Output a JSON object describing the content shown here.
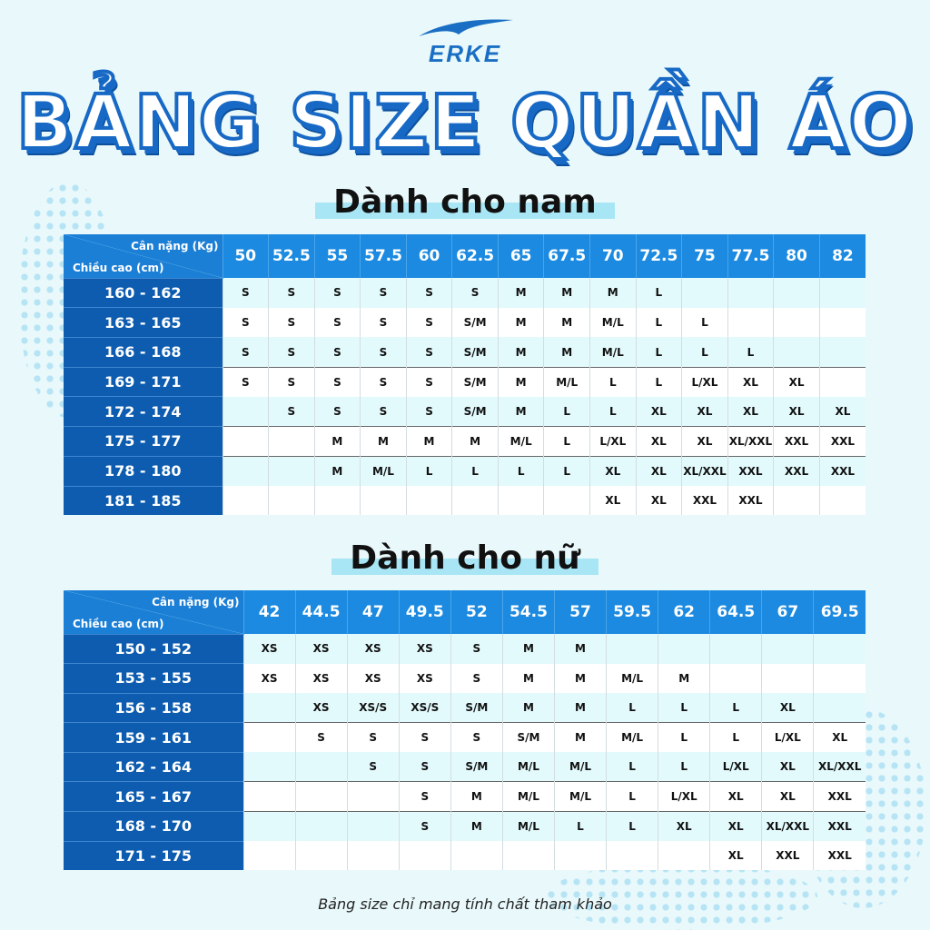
{
  "brand": {
    "name": "ERKE",
    "color": "#1a6fc4"
  },
  "title": "BẢNG SIZE QUẦN ÁO",
  "male": {
    "heading": "Dành cho nam",
    "weight_label": "Cân nặng (Kg)",
    "height_label": "Chiều cao (cm)",
    "weights": [
      "50",
      "52.5",
      "55",
      "57.5",
      "60",
      "62.5",
      "65",
      "67.5",
      "70",
      "72.5",
      "75",
      "77.5",
      "80",
      "82"
    ],
    "rows": [
      {
        "height": "160 - 162",
        "sizes": [
          "S",
          "S",
          "S",
          "S",
          "S",
          "S",
          "M",
          "M",
          "M",
          "L",
          "",
          "",
          "",
          ""
        ]
      },
      {
        "height": "163 - 165",
        "sizes": [
          "S",
          "S",
          "S",
          "S",
          "S",
          "S/M",
          "M",
          "M",
          "M/L",
          "L",
          "L",
          "",
          "",
          ""
        ]
      },
      {
        "height": "166 - 168",
        "sizes": [
          "S",
          "S",
          "S",
          "S",
          "S",
          "S/M",
          "M",
          "M",
          "M/L",
          "L",
          "L",
          "L",
          "",
          ""
        ]
      },
      {
        "height": "169 - 171",
        "sizes": [
          "S",
          "S",
          "S",
          "S",
          "S",
          "S/M",
          "M",
          "M/L",
          "L",
          "L",
          "L/XL",
          "XL",
          "XL",
          ""
        ]
      },
      {
        "height": "172 - 174",
        "sizes": [
          "",
          "S",
          "S",
          "S",
          "S",
          "S/M",
          "M",
          "L",
          "L",
          "XL",
          "XL",
          "XL",
          "XL",
          "XL"
        ]
      },
      {
        "height": "175 - 177",
        "sizes": [
          "",
          "",
          "M",
          "M",
          "M",
          "M",
          "M/L",
          "L",
          "L/XL",
          "XL",
          "XL",
          "XL/XXL",
          "XXL",
          "XXL"
        ]
      },
      {
        "height": "178 - 180",
        "sizes": [
          "",
          "",
          "M",
          "M/L",
          "L",
          "L",
          "L",
          "L",
          "XL",
          "XL",
          "XL/XXL",
          "XXL",
          "XXL",
          "XXL"
        ]
      },
      {
        "height": "181 - 185",
        "sizes": [
          "",
          "",
          "",
          "",
          "",
          "",
          "",
          "",
          "XL",
          "XL",
          "XXL",
          "XXL",
          "",
          ""
        ]
      }
    ]
  },
  "female": {
    "heading": "Dành cho nữ",
    "weight_label": "Cân nặng (Kg)",
    "height_label": "Chiều cao (cm)",
    "weights": [
      "42",
      "44.5",
      "47",
      "49.5",
      "52",
      "54.5",
      "57",
      "59.5",
      "62",
      "64.5",
      "67",
      "69.5"
    ],
    "rows": [
      {
        "height": "150 - 152",
        "sizes": [
          "XS",
          "XS",
          "XS",
          "XS",
          "S",
          "M",
          "M",
          "",
          "",
          "",
          "",
          ""
        ]
      },
      {
        "height": "153 - 155",
        "sizes": [
          "XS",
          "XS",
          "XS",
          "XS",
          "S",
          "M",
          "M",
          "M/L",
          "M",
          "",
          "",
          ""
        ]
      },
      {
        "height": "156 - 158",
        "sizes": [
          "",
          "XS",
          "XS/S",
          "XS/S",
          "S/M",
          "M",
          "M",
          "L",
          "L",
          "L",
          "XL",
          ""
        ]
      },
      {
        "height": "159 - 161",
        "sizes": [
          "",
          "S",
          "S",
          "S",
          "S",
          "S/M",
          "M",
          "M/L",
          "L",
          "L",
          "L/XL",
          "XL"
        ]
      },
      {
        "height": "162 - 164",
        "sizes": [
          "",
          "",
          "S",
          "S",
          "S/M",
          "M/L",
          "M/L",
          "L",
          "L",
          "L/XL",
          "XL",
          "XL/XXL"
        ]
      },
      {
        "height": "165 - 167",
        "sizes": [
          "",
          "",
          "",
          "S",
          "M",
          "M/L",
          "M/L",
          "L",
          "L/XL",
          "XL",
          "XL",
          "XXL"
        ]
      },
      {
        "height": "168 - 170",
        "sizes": [
          "",
          "",
          "",
          "S",
          "M",
          "M/L",
          "L",
          "L",
          "XL",
          "XL",
          "XL/XXL",
          "XXL"
        ]
      },
      {
        "height": "171 - 175",
        "sizes": [
          "",
          "",
          "",
          "",
          "",
          "",
          "",
          "",
          "",
          "XL",
          "XXL",
          "XXL"
        ]
      }
    ]
  },
  "footer_note": "Bảng size chỉ mang tính chất tham khảo",
  "colors": {
    "header_blue": "#1b8ae0",
    "row_header_blue": "#0d5cb0",
    "background": "#e9f9fb"
  }
}
